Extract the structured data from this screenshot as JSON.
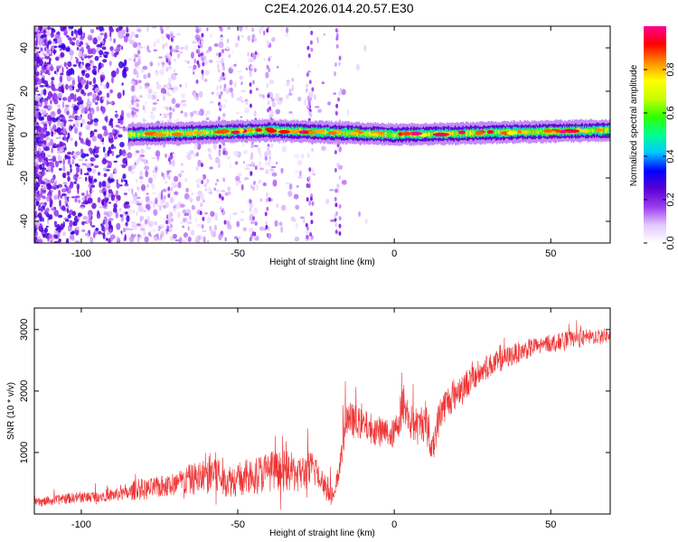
{
  "figure": {
    "title": "C2E4.2026.014.20.57.E30"
  },
  "chart_data": [
    {
      "type": "heatmap",
      "xlabel": "Height of straight line (km)",
      "ylabel": "Frequency (Hz)",
      "xlim": [
        -115,
        69
      ],
      "ylim": [
        -50,
        50
      ],
      "xticks": [
        -100,
        -50,
        0,
        50
      ],
      "yticks": [
        -40,
        -20,
        0,
        20,
        40
      ],
      "grid": false,
      "colorbar": {
        "label": "Normalized spectral amplitude",
        "range": [
          0,
          1
        ],
        "ticks": [
          0.0,
          0.2,
          0.4,
          0.6,
          0.8
        ],
        "colormap": [
          "#ffffff",
          "#e3c8ff",
          "#9a3cf0",
          "#5a00d2",
          "#0000ff",
          "#00c8ff",
          "#00ff90",
          "#32ff00",
          "#c8ff00",
          "#ffff00",
          "#ff8c00",
          "#ff0000",
          "#ff0090"
        ]
      },
      "band": {
        "x": [
          -85,
          69
        ],
        "center_hz": [
          [
            -85,
            0
          ],
          [
            -60,
            1
          ],
          [
            -40,
            2
          ],
          [
            -20,
            1
          ],
          [
            0,
            0
          ],
          [
            20,
            0.5
          ],
          [
            40,
            1.2
          ],
          [
            69,
            2
          ]
        ]
      },
      "description_note": ""
    },
    {
      "type": "line",
      "xlabel": "Height of straight line (km)",
      "ylabel": "SNR (10 * v/v)",
      "xlim": [
        -115,
        69
      ],
      "ylim": [
        0,
        3350
      ],
      "xticks": [
        -100,
        -50,
        0,
        50
      ],
      "yticks": [
        1000,
        2000,
        3000
      ],
      "grid": false,
      "line_color": "#ee3333",
      "x": [
        -115,
        -110,
        -105,
        -100,
        -95,
        -90,
        -85,
        -82,
        -80,
        -75,
        -70,
        -65,
        -60,
        -57,
        -55,
        -50,
        -45,
        -40,
        -35,
        -30,
        -25,
        -22,
        -19,
        -17,
        -15,
        -10,
        -5,
        0,
        3,
        5,
        8,
        10,
        12,
        15,
        20,
        25,
        30,
        35,
        40,
        45,
        50,
        55,
        60,
        65,
        69
      ],
      "y": [
        180,
        210,
        250,
        270,
        290,
        310,
        330,
        420,
        390,
        440,
        480,
        560,
        620,
        700,
        540,
        560,
        620,
        700,
        700,
        660,
        740,
        450,
        250,
        980,
        1550,
        1450,
        1350,
        1300,
        1800,
        1500,
        1400,
        1550,
        1050,
        1700,
        2000,
        2200,
        2400,
        2520,
        2640,
        2720,
        2780,
        2830,
        2860,
        2890,
        2900
      ],
      "noise_amplitude": [
        120,
        130,
        140,
        150,
        160,
        170,
        190,
        320,
        280,
        300,
        350,
        420,
        520,
        700,
        420,
        480,
        520,
        560,
        560,
        520,
        520,
        400,
        250,
        450,
        500,
        420,
        420,
        400,
        600,
        500,
        520,
        560,
        480,
        500,
        420,
        380,
        340,
        300,
        280,
        260,
        240,
        230,
        220,
        210,
        200
      ]
    }
  ]
}
